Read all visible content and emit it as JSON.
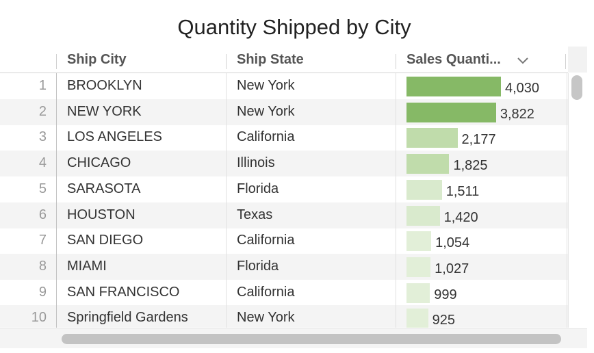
{
  "title": "Quantity Shipped by City",
  "columns": {
    "city": "Ship City",
    "state": "Ship State",
    "quantity": "Sales Quanti..."
  },
  "icons": {
    "sort": "chevron-down-icon"
  },
  "colors": {
    "bar_high": "#86b966",
    "bar_mid": "#c0dcab",
    "bar_low": "#d9eacd",
    "bar_lowest": "#e2efd8"
  },
  "chart_data": {
    "type": "table",
    "title": "Quantity Shipped by City",
    "columns": [
      "Ship City",
      "Ship State",
      "Sales Quanti..."
    ],
    "max": 4030,
    "rows": [
      {
        "index": "1",
        "city": "BROOKLYN",
        "state": "New York",
        "quantity": 4030,
        "label": "4,030"
      },
      {
        "index": "2",
        "city": "NEW YORK",
        "state": "New York",
        "quantity": 3822,
        "label": "3,822"
      },
      {
        "index": "3",
        "city": "LOS ANGELES",
        "state": "California",
        "quantity": 2177,
        "label": "2,177"
      },
      {
        "index": "4",
        "city": "CHICAGO",
        "state": "Illinois",
        "quantity": 1825,
        "label": "1,825"
      },
      {
        "index": "5",
        "city": "SARASOTA",
        "state": "Florida",
        "quantity": 1511,
        "label": "1,511"
      },
      {
        "index": "6",
        "city": "HOUSTON",
        "state": "Texas",
        "quantity": 1420,
        "label": "1,420"
      },
      {
        "index": "7",
        "city": "SAN DIEGO",
        "state": "California",
        "quantity": 1054,
        "label": "1,054"
      },
      {
        "index": "8",
        "city": "MIAMI",
        "state": "Florida",
        "quantity": 1027,
        "label": "1,027"
      },
      {
        "index": "9",
        "city": "SAN FRANCISCO",
        "state": "California",
        "quantity": 999,
        "label": "999"
      },
      {
        "index": "10",
        "city": "Springfield Gardens",
        "state": "New York",
        "quantity": 925,
        "label": "925"
      }
    ]
  }
}
